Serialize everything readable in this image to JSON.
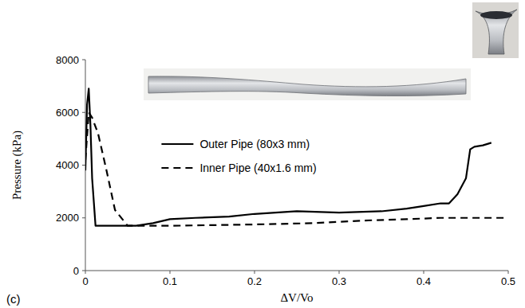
{
  "chart_data": {
    "type": "line",
    "x_label": "ΔV/Vo",
    "y_label": "Pressure (kPa)",
    "panel_label": "(c)",
    "xlim": [
      0,
      0.5
    ],
    "xticks": [
      0,
      0.1,
      0.2,
      0.3,
      0.4,
      0.5
    ],
    "ylim": [
      0,
      8000
    ],
    "yticks": [
      0,
      2000,
      4000,
      6000,
      8000
    ],
    "grid": false,
    "legend": "upper center",
    "series": [
      {
        "name": "Outer Pipe (80x3 mm)",
        "color": "#000000",
        "line_style": "solid",
        "x": [
          0,
          0.002,
          0.004,
          0.006,
          0.008,
          0.012,
          0.03,
          0.06,
          0.08,
          0.1,
          0.13,
          0.17,
          0.2,
          0.25,
          0.3,
          0.35,
          0.38,
          0.4,
          0.42,
          0.43,
          0.44,
          0.45,
          0.455,
          0.46,
          0.47,
          0.48
        ],
        "values": [
          3800,
          6300,
          6900,
          5500,
          3500,
          1700,
          1700,
          1700,
          1800,
          1950,
          2000,
          2050,
          2150,
          2250,
          2200,
          2250,
          2350,
          2450,
          2550,
          2550,
          2900,
          3500,
          4600,
          4700,
          4750,
          4850
        ]
      },
      {
        "name": "Inner Pipe (40x1.6 mm)",
        "color": "#000000",
        "line_style": "dashed",
        "x": [
          0,
          0.004,
          0.008,
          0.015,
          0.025,
          0.035,
          0.05,
          0.1,
          0.2,
          0.27,
          0.33,
          0.38,
          0.42,
          0.5
        ],
        "values": [
          4200,
          6000,
          5800,
          5200,
          3800,
          2300,
          1700,
          1700,
          1750,
          1800,
          1900,
          1950,
          2000,
          2000
        ]
      }
    ]
  }
}
